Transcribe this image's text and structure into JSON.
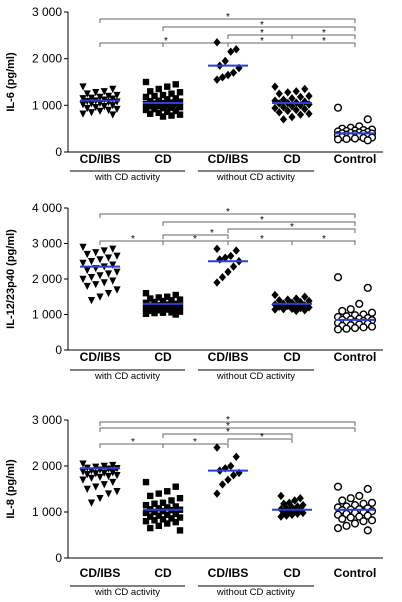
{
  "chart_data": [
    {
      "type": "scatter",
      "ylabel": "IL-6 (pg/ml)",
      "ylim": [
        0,
        3000
      ],
      "yticks": [
        0,
        1000,
        2000,
        3000
      ],
      "ytick_labels": [
        "0",
        "1 000",
        "2 000",
        "3 000"
      ],
      "categories": [
        "CD/IBS",
        "CD",
        "CD/IBS",
        "CD",
        "Control"
      ],
      "groups": [
        {
          "label": "with CD activity",
          "categories": [
            0,
            1
          ]
        },
        {
          "label": "without CD activity",
          "categories": [
            2,
            3
          ]
        }
      ],
      "markers": [
        "triangle-down",
        "square",
        "diamond",
        "diamond",
        "circle-open"
      ],
      "medians": [
        1100,
        1050,
        1850,
        1050,
        400
      ],
      "median_color": "#2b3fd6",
      "series": [
        {
          "values": [
            1400,
            1350,
            1300,
            1280,
            1250,
            1220,
            1200,
            1180,
            1160,
            1150,
            1140,
            1120,
            1100,
            1090,
            1080,
            1070,
            1050,
            1040,
            1020,
            1000,
            980,
            960,
            940,
            920,
            900,
            880,
            850,
            820,
            800
          ]
        },
        {
          "values": [
            1500,
            1450,
            1400,
            1350,
            1300,
            1280,
            1250,
            1220,
            1200,
            1180,
            1150,
            1130,
            1100,
            1090,
            1080,
            1060,
            1050,
            1040,
            1030,
            1020,
            1000,
            990,
            980,
            960,
            950,
            940,
            920,
            900,
            880,
            860,
            840,
            820,
            800,
            780,
            760
          ]
        },
        {
          "values": [
            2350,
            2200,
            2150,
            1950,
            1850,
            1800,
            1700,
            1650,
            1600,
            1550
          ]
        },
        {
          "values": [
            1400,
            1350,
            1300,
            1280,
            1250,
            1200,
            1180,
            1150,
            1120,
            1100,
            1080,
            1060,
            1050,
            1040,
            1020,
            1000,
            980,
            960,
            940,
            920,
            900,
            880,
            850,
            820,
            800,
            750,
            700
          ]
        },
        {
          "values": [
            950,
            700,
            550,
            520,
            500,
            480,
            470,
            460,
            450,
            440,
            430,
            420,
            410,
            400,
            395,
            390,
            380,
            370,
            360,
            350,
            340,
            330,
            320,
            310,
            300,
            290,
            280,
            270,
            250
          ]
        }
      ],
      "significance": [
        "*",
        "*",
        "*",
        "*",
        "*",
        "*",
        "*"
      ]
    },
    {
      "type": "scatter",
      "ylabel": "IL-12/23p40 (pg/ml)",
      "ylim": [
        0,
        4000
      ],
      "yticks": [
        0,
        1000,
        2000,
        3000,
        4000
      ],
      "ytick_labels": [
        "0",
        "1 000",
        "2 000",
        "3 000",
        "4 000"
      ],
      "categories": [
        "CD/IBS",
        "CD",
        "CD/IBS",
        "CD",
        "Control"
      ],
      "groups": [
        {
          "label": "with CD activity",
          "categories": [
            0,
            1
          ]
        },
        {
          "label": "without CD activity",
          "categories": [
            2,
            3
          ]
        }
      ],
      "markers": [
        "triangle-down",
        "square",
        "diamond",
        "diamond",
        "circle-open"
      ],
      "medians": [
        2350,
        1300,
        2500,
        1300,
        850
      ],
      "median_color": "#2b3fd6",
      "series": [
        {
          "values": [
            2900,
            2850,
            2800,
            2750,
            2700,
            2650,
            2600,
            2550,
            2500,
            2450,
            2400,
            2350,
            2300,
            2250,
            2200,
            2150,
            2100,
            2050,
            2000,
            1950,
            1900,
            1850,
            1800,
            1700,
            1600,
            1500,
            1400
          ]
        },
        {
          "values": [
            1600,
            1550,
            1500,
            1480,
            1450,
            1420,
            1400,
            1380,
            1350,
            1330,
            1300,
            1280,
            1260,
            1250,
            1240,
            1220,
            1200,
            1180,
            1160,
            1150,
            1140,
            1120,
            1100,
            1080,
            1060,
            1050,
            1040,
            1020,
            1000
          ]
        },
        {
          "values": [
            2850,
            2800,
            2650,
            2600,
            2550,
            2500,
            2350,
            2200,
            2050,
            1900
          ]
        },
        {
          "values": [
            1550,
            1500,
            1450,
            1420,
            1400,
            1380,
            1350,
            1330,
            1300,
            1280,
            1260,
            1250,
            1240,
            1220,
            1200,
            1180,
            1160,
            1150,
            1140,
            1120,
            1100
          ]
        },
        {
          "values": [
            2050,
            1750,
            1300,
            1150,
            1100,
            1050,
            1000,
            980,
            950,
            930,
            900,
            880,
            860,
            850,
            840,
            820,
            800,
            780,
            760,
            740,
            720,
            700,
            680,
            660,
            640,
            620,
            600,
            580
          ]
        }
      ],
      "significance": [
        "*",
        "*",
        "*",
        "*",
        "*",
        "*",
        "*",
        "*"
      ]
    },
    {
      "type": "scatter",
      "ylabel": "IL-8 (pg/ml)",
      "ylim": [
        0,
        3000
      ],
      "yticks": [
        0,
        1000,
        2000,
        3000
      ],
      "ytick_labels": [
        "0",
        "1 000",
        "2 000",
        "3 000"
      ],
      "categories": [
        "CD/IBS",
        "CD",
        "CD/IBS",
        "CD",
        "Control"
      ],
      "groups": [
        {
          "label": "with CD activity",
          "categories": [
            0,
            1
          ]
        },
        {
          "label": "without CD activity",
          "categories": [
            2,
            3
          ]
        }
      ],
      "markers": [
        "triangle-down",
        "square",
        "diamond",
        "diamond",
        "circle-open"
      ],
      "medians": [
        1950,
        1050,
        1900,
        1050,
        1050
      ],
      "median_color": "#2b3fd6",
      "series": [
        {
          "values": [
            2050,
            2020,
            2000,
            1980,
            1960,
            1950,
            1940,
            1920,
            1900,
            1880,
            1860,
            1850,
            1840,
            1820,
            1800,
            1780,
            1760,
            1740,
            1700,
            1650,
            1600,
            1550,
            1500,
            1450,
            1400,
            1300,
            1200
          ]
        },
        {
          "values": [
            1650,
            1550,
            1450,
            1400,
            1350,
            1300,
            1250,
            1200,
            1180,
            1150,
            1120,
            1100,
            1080,
            1060,
            1050,
            1040,
            1020,
            1000,
            980,
            960,
            940,
            920,
            900,
            880,
            860,
            840,
            820,
            800,
            780,
            750,
            700,
            650,
            600
          ]
        },
        {
          "values": [
            2400,
            2200,
            2000,
            1950,
            1900,
            1850,
            1800,
            1700,
            1600,
            1400
          ]
        },
        {
          "values": [
            1350,
            1300,
            1250,
            1200,
            1180,
            1150,
            1120,
            1100,
            1080,
            1060,
            1050,
            1040,
            1020,
            1000,
            980,
            960,
            940,
            920,
            900
          ]
        },
        {
          "values": [
            1550,
            1500,
            1350,
            1300,
            1250,
            1200,
            1180,
            1150,
            1120,
            1100,
            1080,
            1060,
            1050,
            1040,
            1020,
            1000,
            980,
            960,
            940,
            920,
            900,
            880,
            850,
            820,
            800,
            750,
            700,
            650,
            600
          ]
        }
      ],
      "significance": [
        "*",
        "*",
        "*",
        "*",
        "*",
        "*"
      ]
    }
  ]
}
